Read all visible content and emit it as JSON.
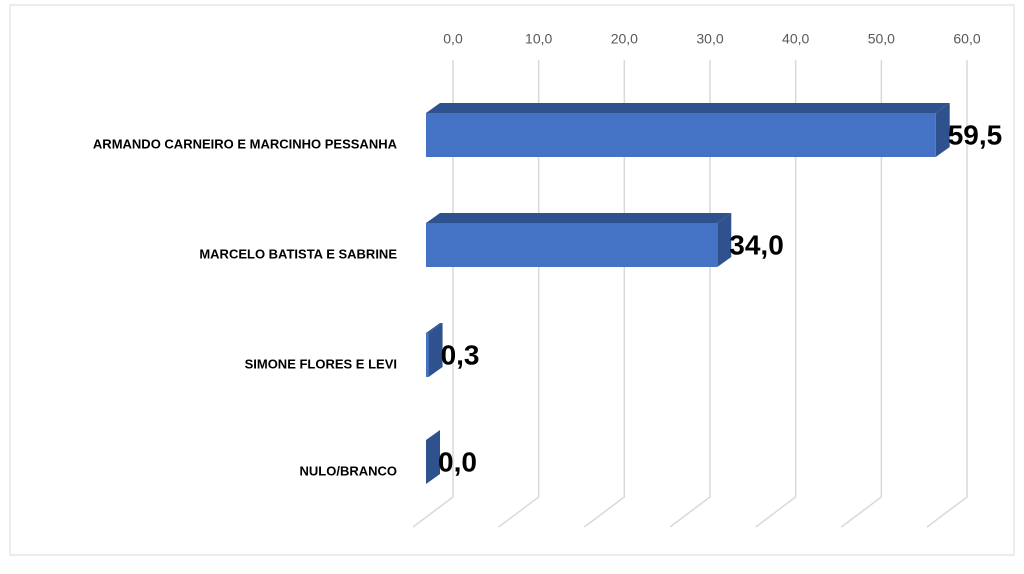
{
  "chart_data": {
    "type": "bar3d",
    "categories": [
      "ARMANDO CARNEIRO E MARCINHO PESSANHA",
      "MARCELO BATISTA E SABRINE",
      "SIMONE FLORES E LEVI",
      "NULO/BRANCO"
    ],
    "values": [
      59.5,
      34.0,
      0.3,
      0.0
    ],
    "value_labels": [
      "59,5",
      "34,0",
      "0,3",
      "0,0"
    ],
    "color": "#4472c4",
    "xlim": [
      0,
      60
    ],
    "xticks": [
      {
        "value": 0,
        "label": "0,0"
      },
      {
        "value": 10,
        "label": "10,0"
      },
      {
        "value": 20,
        "label": "20,0"
      },
      {
        "value": 30,
        "label": "30,0"
      },
      {
        "value": 40,
        "label": "40,0"
      },
      {
        "value": 50,
        "label": "50,0"
      },
      {
        "value": 60,
        "label": "60,0"
      }
    ],
    "grid": true
  }
}
